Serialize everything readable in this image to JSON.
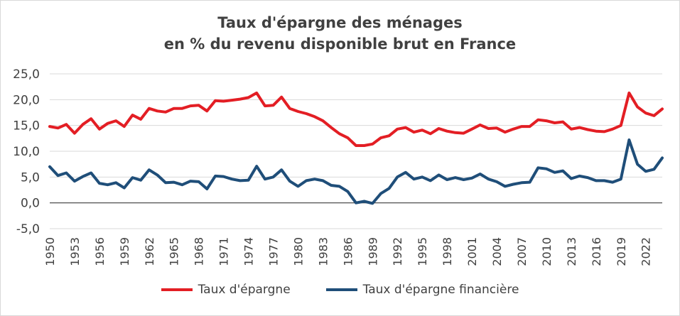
{
  "chart_data": {
    "type": "line",
    "title": "Taux d'épargne des ménages",
    "subtitle": "en % du revenu disponible brut en France",
    "ylim": [
      -5,
      25
    ],
    "yticks": [
      "25,0",
      "20,0",
      "15,0",
      "10,0",
      "5,0",
      "0,0",
      "-5,0"
    ],
    "ytick_values": [
      25,
      20,
      15,
      10,
      5,
      0,
      -5
    ],
    "x": [
      1950,
      1951,
      1952,
      1953,
      1954,
      1955,
      1956,
      1957,
      1958,
      1959,
      1960,
      1961,
      1962,
      1963,
      1964,
      1965,
      1966,
      1967,
      1968,
      1969,
      1970,
      1971,
      1972,
      1973,
      1974,
      1975,
      1976,
      1977,
      1978,
      1979,
      1980,
      1981,
      1982,
      1983,
      1984,
      1985,
      1986,
      1987,
      1988,
      1989,
      1990,
      1991,
      1992,
      1993,
      1994,
      1995,
      1996,
      1997,
      1998,
      1999,
      2000,
      2001,
      2002,
      2003,
      2004,
      2005,
      2006,
      2007,
      2008,
      2009,
      2010,
      2011,
      2012,
      2013,
      2014,
      2015,
      2016,
      2017,
      2018,
      2019,
      2020,
      2021,
      2022,
      2023,
      2024
    ],
    "xtick_labels": [
      "1950",
      "1953",
      "1956",
      "1959",
      "1962",
      "1965",
      "1968",
      "1971",
      "1974",
      "1977",
      "1980",
      "1983",
      "1986",
      "1989",
      "1992",
      "1995",
      "1998",
      "2001",
      "2004",
      "2007",
      "2010",
      "2013",
      "2016",
      "2019",
      "2022"
    ],
    "series": [
      {
        "name": "Taux d'épargne",
        "color": "#e31e24",
        "values": [
          14.8,
          14.5,
          15.2,
          13.5,
          15.2,
          16.3,
          14.3,
          15.4,
          15.9,
          14.8,
          17.0,
          16.2,
          18.3,
          17.8,
          17.6,
          18.3,
          18.3,
          18.8,
          18.9,
          17.8,
          19.8,
          19.7,
          19.9,
          20.1,
          20.4,
          21.3,
          18.8,
          18.9,
          20.5,
          18.3,
          17.7,
          17.3,
          16.7,
          15.9,
          14.6,
          13.4,
          12.6,
          11.1,
          11.1,
          11.4,
          12.6,
          13.0,
          14.3,
          14.6,
          13.7,
          14.1,
          13.4,
          14.4,
          13.9,
          13.6,
          13.5,
          14.3,
          15.1,
          14.4,
          14.5,
          13.7,
          14.3,
          14.8,
          14.8,
          16.1,
          15.9,
          15.5,
          15.7,
          14.3,
          14.6,
          14.2,
          13.9,
          13.8,
          14.3,
          15.0,
          21.3,
          18.6,
          17.4,
          16.9,
          18.2
        ]
      },
      {
        "name": "Taux d'épargne financière",
        "color": "#1f4e79",
        "values": [
          7.0,
          5.3,
          5.8,
          4.2,
          5.1,
          5.8,
          3.8,
          3.5,
          3.9,
          2.9,
          4.9,
          4.4,
          6.4,
          5.4,
          3.9,
          4.0,
          3.5,
          4.2,
          4.1,
          2.7,
          5.2,
          5.1,
          4.6,
          4.3,
          4.4,
          7.1,
          4.6,
          5.0,
          6.4,
          4.2,
          3.2,
          4.3,
          4.6,
          4.3,
          3.4,
          3.2,
          2.2,
          0.0,
          0.3,
          -0.1,
          1.8,
          2.8,
          5.0,
          5.9,
          4.6,
          5.0,
          4.3,
          5.4,
          4.5,
          4.9,
          4.5,
          4.8,
          5.6,
          4.6,
          4.1,
          3.2,
          3.6,
          3.9,
          4.0,
          6.8,
          6.6,
          5.9,
          6.2,
          4.7,
          5.2,
          4.9,
          4.3,
          4.3,
          4.0,
          4.6,
          12.2,
          7.5,
          6.1,
          6.5,
          8.7
        ]
      }
    ],
    "grid": true,
    "legend_position": "bottom"
  }
}
